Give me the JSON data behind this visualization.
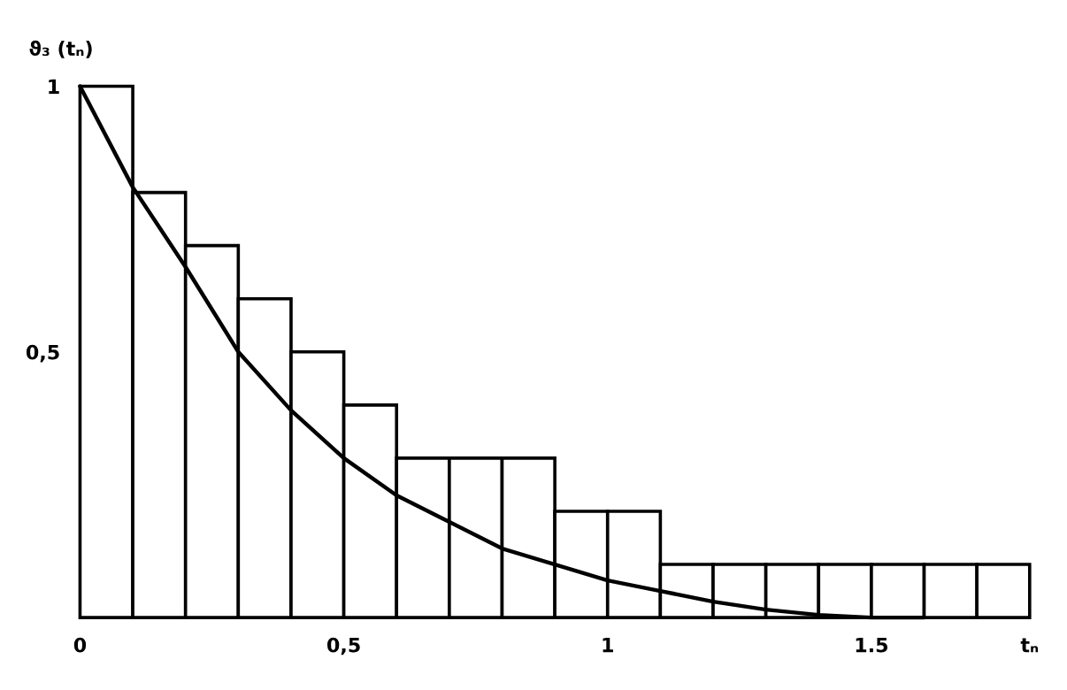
{
  "chart_data": {
    "type": "histogram",
    "ylabel": "ϑ₃ (tₙ)",
    "bins": [
      0,
      0.1,
      0.2,
      0.3,
      0.4,
      0.5,
      0.6,
      0.7,
      0.8,
      0.9,
      1.0,
      1.1,
      1.2,
      1.3,
      1.4,
      1.5,
      1.6,
      1.7,
      1.8
    ],
    "values": [
      1.0,
      0.8,
      0.7,
      0.6,
      0.5,
      0.4,
      0.3,
      0.3,
      0.3,
      0.2,
      0.2,
      0.1,
      0.1,
      0.1,
      0.1,
      0.1,
      0.1,
      0.1
    ],
    "color": "#ffffff",
    "series": [
      {
        "type": "line",
        "color": "#000000",
        "x": [
          0,
          0.1,
          0.2,
          0.3,
          0.4,
          0.5,
          0.6,
          0.7,
          0.8,
          0.9,
          1.0,
          1.1,
          1.2,
          1.3,
          1.4,
          1.5,
          1.6
        ],
        "values": [
          1.0,
          0.81,
          0.66,
          0.5,
          0.39,
          0.3,
          0.23,
          0.18,
          0.13,
          0.1,
          0.07,
          0.05,
          0.03,
          0.015,
          0.005,
          0,
          0
        ]
      }
    ],
    "xlim": [
      0,
      1.8
    ],
    "ylim": [
      0,
      1.0
    ],
    "xticks": [
      0,
      {
        "value": 0.5,
        "label": "0,5"
      },
      1,
      {
        "value": 1.5,
        "label": "1.5"
      },
      {
        "value": 1.8,
        "label": "tₙ"
      }
    ],
    "yticks": [
      {
        "value": 0.5,
        "label": "0,5"
      },
      1
    ],
    "grid": false,
    "legend": false
  }
}
